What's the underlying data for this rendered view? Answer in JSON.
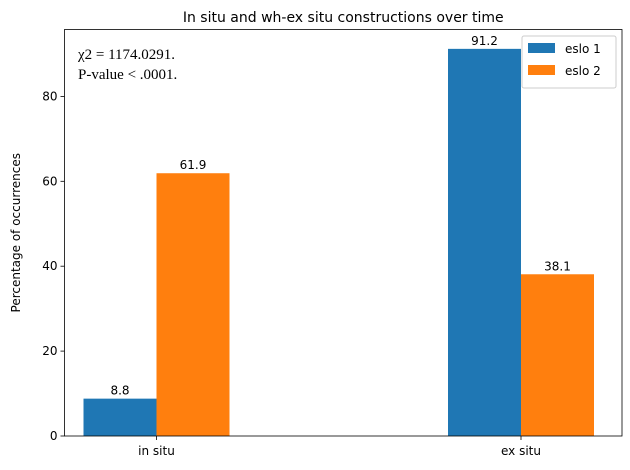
{
  "chart_data": {
    "type": "bar",
    "title": "In situ and wh-ex situ constructions over time",
    "xlabel": "",
    "ylabel": "Percentage of occurrences",
    "categories": [
      "in situ",
      "ex situ"
    ],
    "series": [
      {
        "name": "eslo 1",
        "values": [
          8.8,
          91.2
        ],
        "color": "#1f77b4"
      },
      {
        "name": "eslo 2",
        "values": [
          61.9,
          38.1
        ],
        "color": "#ff7f0e"
      }
    ],
    "value_labels": [
      [
        "8.8",
        "91.2"
      ],
      [
        "61.9",
        "38.1"
      ]
    ],
    "ylim": [
      0,
      95.76
    ],
    "yticks": [
      0,
      20,
      40,
      60,
      80
    ],
    "annotation": [
      "χ2 = 1174.0291.",
      "P-value < .0001."
    ],
    "legend_position": "upper right",
    "grid": false
  }
}
